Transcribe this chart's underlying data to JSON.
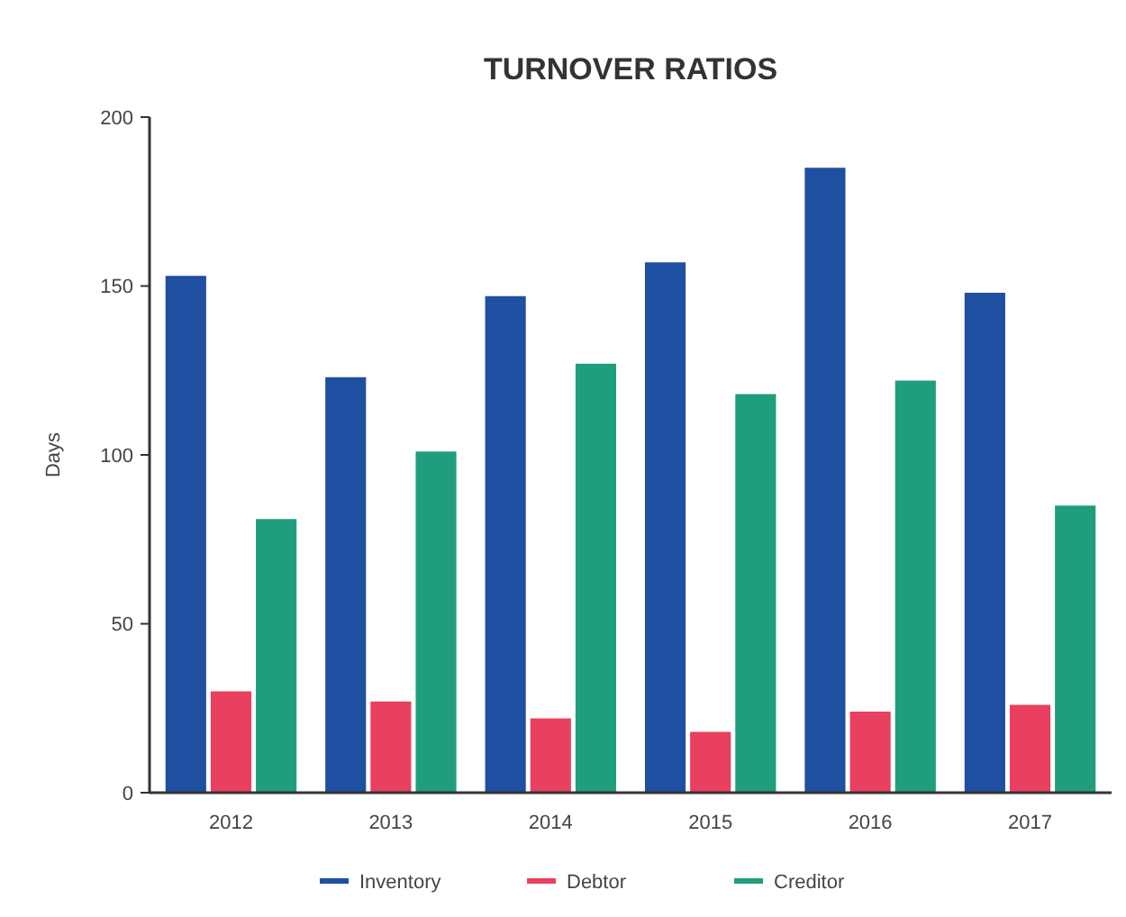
{
  "chart_data": {
    "type": "bar",
    "title": "TURNOVER RATIOS",
    "ylabel": "Days",
    "categories": [
      "2012",
      "2013",
      "2014",
      "2015",
      "2016",
      "2017"
    ],
    "series": [
      {
        "name": "Inventory",
        "color": "#1f4fa0",
        "values": [
          153,
          123,
          147,
          157,
          185,
          148
        ]
      },
      {
        "name": "Debtor",
        "color": "#e8405e",
        "values": [
          30,
          27,
          22,
          18,
          24,
          26
        ]
      },
      {
        "name": "Creditor",
        "color": "#1f9e7e",
        "values": [
          81,
          101,
          127,
          118,
          122,
          85
        ]
      }
    ],
    "ylim": [
      0,
      200
    ],
    "yticks": [
      0,
      50,
      100,
      150,
      200
    ],
    "legend": "bottom"
  }
}
